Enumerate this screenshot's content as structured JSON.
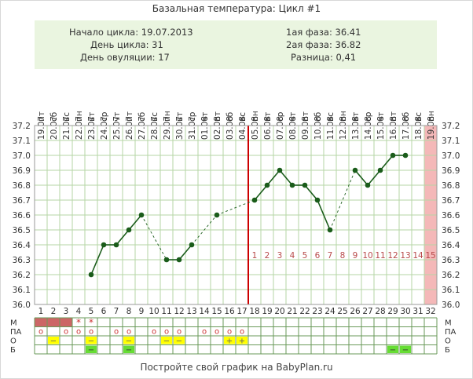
{
  "title": "Базальная температура: Цикл #1",
  "info": {
    "cycle_start": "Начало цикла: 19.07.2013",
    "cycle_day": "День цикла: 31",
    "ovulation_day": "День овуляции: 17",
    "phase1": "1ая фаза: 36.41",
    "phase2": "2ая фаза: 36.82",
    "difference": "Разница: 0,41"
  },
  "footer": "Постройте свой график на BabyPlan.ru",
  "colors": {
    "line": "#1a5c1a",
    "grid": "#b5d6a6",
    "ovulation_line": "#cc0000",
    "period_bar": "#cc6666",
    "pink_column": "#f4b8b8",
    "yellow": "#ffff00",
    "green": "#66dd33",
    "phase_number": "#b84a4a"
  },
  "chart_data": {
    "type": "line",
    "title": "Базальная температура: Цикл #1",
    "y_ticks": [
      "37.2",
      "37.1",
      "37.0",
      "36.9",
      "36.8",
      "36.7",
      "36.6",
      "36.5",
      "36.4",
      "36.3",
      "36.2",
      "36.1",
      "36.0"
    ],
    "ylim": [
      36.0,
      37.2
    ],
    "grid": true,
    "weekdays": [
      "пт",
      "сб",
      "вс",
      "пн",
      "вт",
      "ср",
      "чт",
      "пт",
      "сб",
      "вс",
      "пн",
      "вт",
      "ср",
      "чт",
      "пт",
      "сб",
      "вс",
      "пн",
      "вт",
      "ср",
      "чт",
      "пт",
      "сб",
      "вс",
      "пн",
      "вт",
      "ср",
      "чт",
      "пт",
      "сб",
      "вс",
      "пн"
    ],
    "dates": [
      "19.07",
      "20.07",
      "21.07",
      "22.07",
      "23.07",
      "24.07",
      "25.07",
      "26.07",
      "27.07",
      "28.07",
      "29.07",
      "30.07",
      "31.07",
      "01.08",
      "02.08",
      "03.08",
      "04.08",
      "05.08",
      "06.08",
      "07.08",
      "08.08",
      "09.08",
      "10.08",
      "11.08",
      "12.08",
      "13.08",
      "14.08",
      "15.08",
      "16.08",
      "17.08",
      "18.08",
      "19.08"
    ],
    "days": [
      1,
      2,
      3,
      4,
      5,
      6,
      7,
      8,
      9,
      10,
      11,
      12,
      13,
      14,
      15,
      16,
      17,
      18,
      19,
      20,
      21,
      22,
      23,
      24,
      25,
      26,
      27,
      28,
      29,
      30,
      31,
      32
    ],
    "temperatures": [
      null,
      null,
      null,
      null,
      36.2,
      36.4,
      36.4,
      36.5,
      36.6,
      null,
      36.3,
      36.3,
      36.4,
      null,
      36.6,
      null,
      null,
      36.7,
      36.8,
      36.9,
      36.8,
      36.8,
      36.7,
      36.5,
      null,
      36.9,
      36.8,
      36.9,
      37.0,
      37.0,
      null,
      null
    ],
    "ovulation_day": 17,
    "highlighted_day": 32,
    "luteal_phase_labels": [
      "1",
      "2",
      "3",
      "4",
      "5",
      "6",
      "7",
      "8",
      "9",
      "10",
      "11",
      "12",
      "13",
      "14",
      "15"
    ],
    "bottom_rows": [
      {
        "label": "М",
        "right_label": "М",
        "period_days": [
          1,
          2,
          3
        ],
        "star_days": [
          4,
          5
        ],
        "star_symbol": "*"
      },
      {
        "label": "ПА",
        "right_label": "ПА",
        "circle_days": [
          1,
          3,
          4,
          5,
          7,
          8,
          10,
          11,
          12,
          14,
          15,
          16,
          17
        ],
        "symbol": "o"
      },
      {
        "label": "О",
        "right_label": "О",
        "yellow_minus_days": [
          2,
          5,
          8,
          11,
          12
        ],
        "yellow_plus_days": [
          16,
          17
        ],
        "minus_symbol": "−",
        "plus_symbol": "+"
      },
      {
        "label": "Б",
        "right_label": "Б",
        "green_minus_days": [
          5,
          8,
          29,
          30
        ],
        "minus_symbol": "−"
      }
    ]
  }
}
